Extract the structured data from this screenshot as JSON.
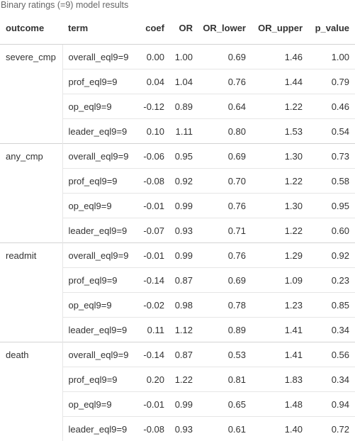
{
  "caption": "Binary ratings (=9) model results",
  "columns": [
    "outcome",
    "term",
    "coef",
    "OR",
    "OR_lower",
    "OR_upper",
    "p_value"
  ],
  "groups": [
    {
      "outcome": "severe_cmp",
      "rows": [
        {
          "term": "overall_eql9=9",
          "coef": "0.00",
          "or": "1.00",
          "or_lower": "0.69",
          "or_upper": "1.46",
          "p_value": "1.00"
        },
        {
          "term": "prof_eql9=9",
          "coef": "0.04",
          "or": "1.04",
          "or_lower": "0.76",
          "or_upper": "1.44",
          "p_value": "0.79"
        },
        {
          "term": "op_eql9=9",
          "coef": "-0.12",
          "or": "0.89",
          "or_lower": "0.64",
          "or_upper": "1.22",
          "p_value": "0.46"
        },
        {
          "term": "leader_eql9=9",
          "coef": "0.10",
          "or": "1.11",
          "or_lower": "0.80",
          "or_upper": "1.53",
          "p_value": "0.54"
        }
      ]
    },
    {
      "outcome": "any_cmp",
      "rows": [
        {
          "term": "overall_eql9=9",
          "coef": "-0.06",
          "or": "0.95",
          "or_lower": "0.69",
          "or_upper": "1.30",
          "p_value": "0.73"
        },
        {
          "term": "prof_eql9=9",
          "coef": "-0.08",
          "or": "0.92",
          "or_lower": "0.70",
          "or_upper": "1.22",
          "p_value": "0.58"
        },
        {
          "term": "op_eql9=9",
          "coef": "-0.01",
          "or": "0.99",
          "or_lower": "0.76",
          "or_upper": "1.30",
          "p_value": "0.95"
        },
        {
          "term": "leader_eql9=9",
          "coef": "-0.07",
          "or": "0.93",
          "or_lower": "0.71",
          "or_upper": "1.22",
          "p_value": "0.60"
        }
      ]
    },
    {
      "outcome": "readmit",
      "rows": [
        {
          "term": "overall_eql9=9",
          "coef": "-0.01",
          "or": "0.99",
          "or_lower": "0.76",
          "or_upper": "1.29",
          "p_value": "0.92"
        },
        {
          "term": "prof_eql9=9",
          "coef": "-0.14",
          "or": "0.87",
          "or_lower": "0.69",
          "or_upper": "1.09",
          "p_value": "0.23"
        },
        {
          "term": "op_eql9=9",
          "coef": "-0.02",
          "or": "0.98",
          "or_lower": "0.78",
          "or_upper": "1.23",
          "p_value": "0.85"
        },
        {
          "term": "leader_eql9=9",
          "coef": "0.11",
          "or": "1.12",
          "or_lower": "0.89",
          "or_upper": "1.41",
          "p_value": "0.34"
        }
      ]
    },
    {
      "outcome": "death",
      "rows": [
        {
          "term": "overall_eql9=9",
          "coef": "-0.14",
          "or": "0.87",
          "or_lower": "0.53",
          "or_upper": "1.41",
          "p_value": "0.56"
        },
        {
          "term": "prof_eql9=9",
          "coef": "0.20",
          "or": "1.22",
          "or_lower": "0.81",
          "or_upper": "1.83",
          "p_value": "0.34"
        },
        {
          "term": "op_eql9=9",
          "coef": "-0.01",
          "or": "0.99",
          "or_lower": "0.65",
          "or_upper": "1.48",
          "p_value": "0.94"
        },
        {
          "term": "leader_eql9=9",
          "coef": "-0.08",
          "or": "0.93",
          "or_lower": "0.61",
          "or_upper": "1.40",
          "p_value": "0.72"
        }
      ]
    }
  ]
}
